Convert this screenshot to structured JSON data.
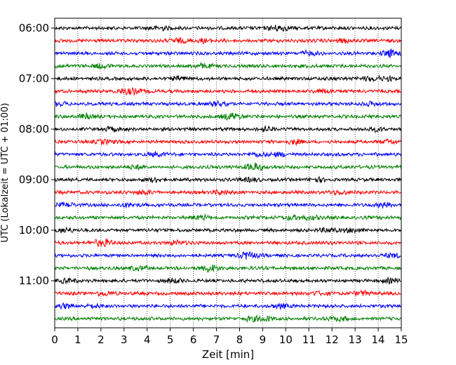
{
  "chart_data": {
    "type": "line",
    "subtype": "helicorder",
    "title": "",
    "xlabel": "Zeit  [min]",
    "ylabel": "UTC (Lokalzeit = UTC + 01:00)",
    "xlim": [
      0,
      15
    ],
    "x_ticks": [
      0,
      1,
      2,
      3,
      4,
      5,
      6,
      7,
      8,
      9,
      10,
      11,
      12,
      13,
      14,
      15
    ],
    "y_tick_labels": [
      "06:00",
      "07:00",
      "08:00",
      "09:00",
      "10:00",
      "11:00"
    ],
    "trace_interval_min": 15,
    "start_time": "06:00",
    "traces": 24,
    "trace_colors": [
      "#000000",
      "#ff0000",
      "#0000ff",
      "#008000"
    ],
    "grid": "vertical dotted at each minute",
    "legend": "none"
  }
}
